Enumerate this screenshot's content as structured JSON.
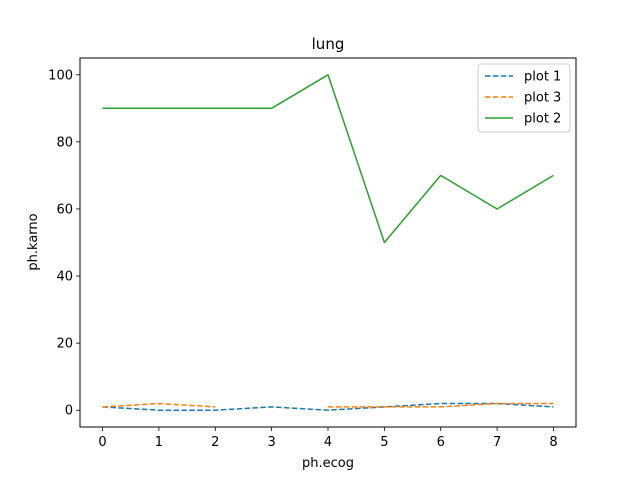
{
  "chart_data": {
    "type": "line",
    "title": "lung",
    "xlabel": "ph.ecog",
    "ylabel": "ph.karno",
    "xlim": [
      -0.4,
      8.4
    ],
    "ylim": [
      -5,
      105
    ],
    "xticks": [
      0,
      1,
      2,
      3,
      4,
      5,
      6,
      7,
      8
    ],
    "yticks": [
      0,
      20,
      40,
      60,
      80,
      100
    ],
    "grid": false,
    "legend_position": "top-right",
    "series": [
      {
        "name": "plot 1",
        "color": "#1f77b4",
        "style": "dashed",
        "points": [
          [
            0,
            1
          ],
          [
            1,
            0
          ],
          [
            2,
            0
          ],
          [
            3,
            1
          ],
          [
            4,
            0
          ],
          [
            5,
            1
          ],
          [
            6,
            2
          ],
          [
            7,
            2
          ],
          [
            8,
            1
          ]
        ]
      },
      {
        "name": "plot 3",
        "color": "#ff7f0e",
        "style": "dashed",
        "segments": [
          [
            [
              0,
              1
            ],
            [
              1,
              2
            ],
            [
              2,
              1
            ]
          ],
          [
            [
              4,
              1
            ],
            [
              5,
              1
            ],
            [
              6,
              1
            ],
            [
              7,
              2
            ],
            [
              8,
              2
            ]
          ]
        ]
      },
      {
        "name": "plot 2",
        "color": "#2ca02c",
        "style": "solid",
        "points": [
          [
            0,
            90
          ],
          [
            1,
            90
          ],
          [
            2,
            90
          ],
          [
            3,
            90
          ],
          [
            4,
            100
          ],
          [
            5,
            50
          ],
          [
            6,
            70
          ],
          [
            7,
            60
          ],
          [
            8,
            70
          ]
        ]
      }
    ]
  }
}
